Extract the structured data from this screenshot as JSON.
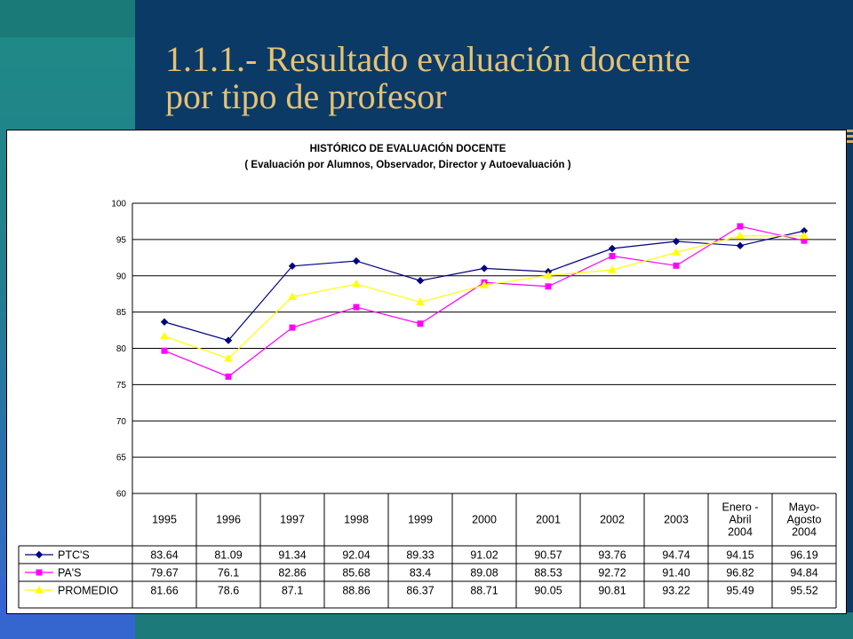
{
  "slide": {
    "title_line1": "1.1.1.- Resultado evaluación docente",
    "title_line2": "por tipo de profesor"
  },
  "colors": {
    "background": "#0b3a66",
    "title": "#e6c274",
    "series": [
      "#000080",
      "#ff00ff",
      "#ffff00"
    ]
  },
  "chart_data": {
    "type": "line",
    "title": "HISTÓRICO DE EVALUACIÓN DOCENTE",
    "subtitle": "( Evaluación por Alumnos, Observador, Director y Autoevaluación )",
    "categories": [
      "1995",
      "1996",
      "1997",
      "1998",
      "1999",
      "2000",
      "2001",
      "2002",
      "2003",
      "Enero - Abril 2004",
      "Mayo- Agosto 2004"
    ],
    "category_lines": [
      [
        "1995"
      ],
      [
        "1996"
      ],
      [
        "1997"
      ],
      [
        "1998"
      ],
      [
        "1999"
      ],
      [
        "2000"
      ],
      [
        "2001"
      ],
      [
        "2002"
      ],
      [
        "2003"
      ],
      [
        "Enero -",
        "Abril",
        "2004"
      ],
      [
        "Mayo-",
        "Agosto",
        "2004"
      ]
    ],
    "ylim": [
      60,
      100
    ],
    "yticks": [
      "60",
      "65",
      "70",
      "75",
      "80",
      "85",
      "90",
      "95",
      "100"
    ],
    "grid": true,
    "legend": "data-table",
    "series": [
      {
        "name": "PTC'S",
        "marker": "diamond",
        "values": [
          83.64,
          81.09,
          91.34,
          92.04,
          89.33,
          91.02,
          90.57,
          93.76,
          94.74,
          94.15,
          96.19
        ],
        "labels": [
          "83.64",
          "81.09",
          "91.34",
          "92.04",
          "89.33",
          "91.02",
          "90.57",
          "93.76",
          "94.74",
          "94.15",
          "96.19"
        ]
      },
      {
        "name": "PA'S",
        "marker": "square",
        "values": [
          79.67,
          76.1,
          82.86,
          85.68,
          83.4,
          89.08,
          88.53,
          92.72,
          91.4,
          96.82,
          94.84
        ],
        "labels": [
          "79.67",
          "76.1",
          "82.86",
          "85.68",
          "83.4",
          "89.08",
          "88.53",
          "92.72",
          "91.40",
          "96.82",
          "94.84"
        ]
      },
      {
        "name": "PROMEDIO",
        "marker": "triangle",
        "values": [
          81.66,
          78.6,
          87.1,
          88.86,
          86.37,
          88.71,
          90.05,
          90.81,
          93.22,
          95.49,
          95.52
        ],
        "labels": [
          "81.66",
          "78.6",
          "87.1",
          "88.86",
          "86.37",
          "88.71",
          "90.05",
          "90.81",
          "93.22",
          "95.49",
          "95.52"
        ]
      }
    ]
  }
}
